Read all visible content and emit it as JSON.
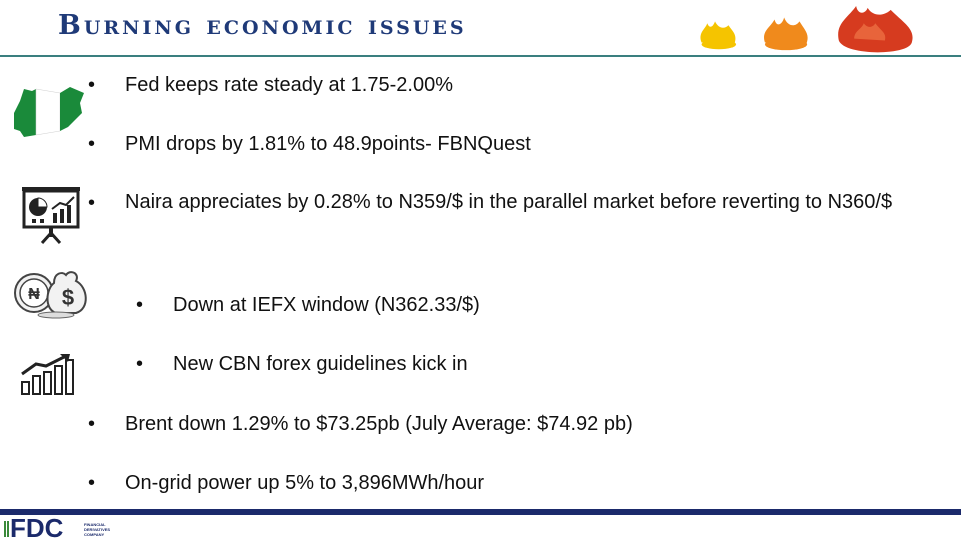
{
  "header": {
    "title": "Burning economic issues",
    "title_color": "#1f3a78"
  },
  "bullets": [
    {
      "marker": "•",
      "text": "Fed keeps rate steady at 1.75-2.00%"
    },
    {
      "marker": "•",
      "text": "PMI drops by  1.81% to 48.9points- FBNQuest"
    },
    {
      "marker": "•",
      "text": "Naira appreciates by 0.28% to N359/$ in the parallel market before reverting to N360/$"
    },
    {
      "marker": "•",
      "text": "Down at IEFX window (N362.33/$)"
    },
    {
      "marker": "•",
      "text": "New CBN forex guidelines kick in"
    },
    {
      "marker": "•",
      "text": "Brent down 1.29% to $73.25pb (July Average: $74.92 pb)"
    },
    {
      "marker": "•",
      "text": "On-grid power up 5% to 3,896MWh/hour"
    }
  ],
  "icons": {
    "map": "nigeria-map-icon",
    "presentation": "presentation-chart-icon",
    "coins": "naira-dollar-coins-icon",
    "growth": "growth-chart-icon",
    "flames": "flame-icons"
  },
  "footer": {
    "logo_text": "FDC",
    "logo_sub_1": "FINANCIAL",
    "logo_sub_2": "DERIVATIVES",
    "logo_sub_3": "COMPANY",
    "bar_color": "#1b2a6b"
  }
}
